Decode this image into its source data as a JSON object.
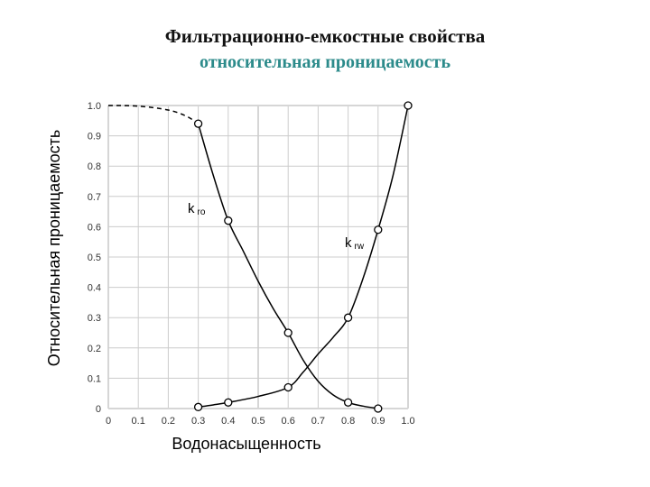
{
  "colors": {
    "title": "#111111",
    "subtitle": "#2c8b8b",
    "curve": "#000000",
    "grid": "#cccccc",
    "axis_frame": "#d6d6d6"
  },
  "chart_data": {
    "type": "line",
    "title": "Фильтрационно-емкостные свойства",
    "subtitle": "относительная проницаемость",
    "xlabel": "Водонасыщенность",
    "ylabel": "Относительная проницаемость",
    "xlim": [
      0,
      1.0
    ],
    "ylim": [
      0,
      1.0
    ],
    "xticks": [
      "0",
      "0.1",
      "0.2",
      "0.3",
      "0.4",
      "0.5",
      "0.6",
      "0.7",
      "0.8",
      "0.9",
      "1.0"
    ],
    "yticks": [
      "0",
      "0.1",
      "0.2",
      "0.3",
      "0.4",
      "0.5",
      "0.6",
      "0.7",
      "0.8",
      "0.9",
      "1.0"
    ],
    "grid": true,
    "series": [
      {
        "name": "k ro",
        "label_main": "k",
        "label_sub": "ro",
        "points": [
          [
            0.3,
            0.94
          ],
          [
            0.4,
            0.62
          ],
          [
            0.6,
            0.25
          ],
          [
            0.8,
            0.02
          ],
          [
            0.9,
            0.0
          ]
        ],
        "curve": [
          [
            0.3,
            0.94
          ],
          [
            0.35,
            0.77
          ],
          [
            0.4,
            0.62
          ],
          [
            0.45,
            0.52
          ],
          [
            0.5,
            0.42
          ],
          [
            0.55,
            0.33
          ],
          [
            0.6,
            0.25
          ],
          [
            0.65,
            0.16
          ],
          [
            0.7,
            0.09
          ],
          [
            0.75,
            0.045
          ],
          [
            0.8,
            0.02
          ],
          [
            0.85,
            0.008
          ],
          [
            0.9,
            0.0
          ]
        ],
        "extrapolated": [
          [
            0.0,
            1.0
          ],
          [
            0.1,
            0.998
          ],
          [
            0.2,
            0.985
          ],
          [
            0.26,
            0.965
          ],
          [
            0.3,
            0.94
          ]
        ]
      },
      {
        "name": "k rw",
        "label_main": "k",
        "label_sub": "rw",
        "points": [
          [
            0.3,
            0.005
          ],
          [
            0.4,
            0.02
          ],
          [
            0.6,
            0.07
          ],
          [
            0.8,
            0.3
          ],
          [
            0.9,
            0.59
          ],
          [
            1.0,
            1.0
          ]
        ],
        "curve": [
          [
            0.3,
            0.005
          ],
          [
            0.35,
            0.012
          ],
          [
            0.4,
            0.02
          ],
          [
            0.5,
            0.04
          ],
          [
            0.6,
            0.07
          ],
          [
            0.65,
            0.12
          ],
          [
            0.7,
            0.18
          ],
          [
            0.75,
            0.235
          ],
          [
            0.8,
            0.3
          ],
          [
            0.85,
            0.43
          ],
          [
            0.9,
            0.59
          ],
          [
            0.95,
            0.77
          ],
          [
            1.0,
            1.0
          ]
        ]
      }
    ]
  }
}
